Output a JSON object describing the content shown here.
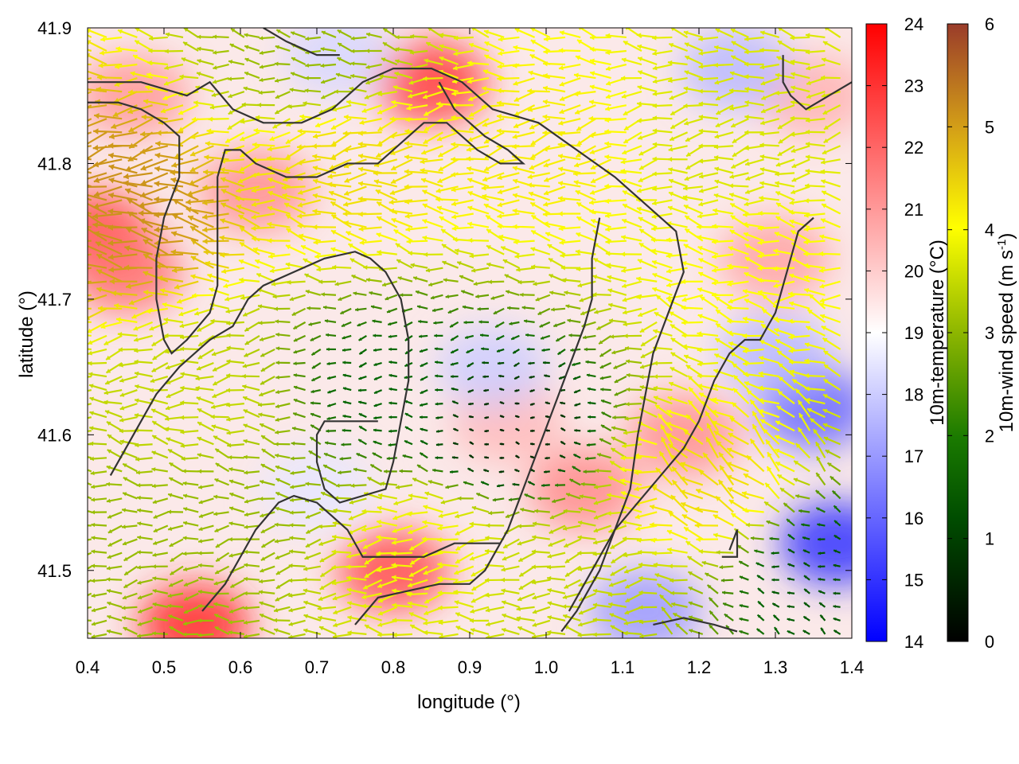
{
  "chart_data": {
    "type": "heatmap",
    "title": "",
    "xlabel": "longitude (°)",
    "ylabel": "latitude (°)",
    "xlim": [
      0.4,
      1.4
    ],
    "ylim": [
      41.45,
      41.9
    ],
    "xticks": [
      0.4,
      0.5,
      0.6,
      0.7,
      0.8,
      0.9,
      1.0,
      1.1,
      1.2,
      1.3,
      1.4
    ],
    "xtick_labels": [
      "0.4",
      "0.5",
      "0.6",
      "0.7",
      "0.8",
      "0.9",
      "1.0",
      "1.1",
      "1.2",
      "1.3",
      "1.4"
    ],
    "yticks": [
      41.5,
      41.6,
      41.7,
      41.8,
      41.9
    ],
    "ytick_labels": [
      "41.5",
      "41.6",
      "41.7",
      "41.8",
      "41.9"
    ],
    "grid": false,
    "temperature": {
      "label": "10m-temperature (°C)",
      "range": [
        14,
        24
      ],
      "ticks": [
        14,
        15,
        16,
        17,
        18,
        19,
        20,
        21,
        22,
        23,
        24
      ],
      "tick_labels": [
        "14",
        "15",
        "16",
        "17",
        "18",
        "19",
        "20",
        "21",
        "22",
        "23",
        "24"
      ],
      "colormap": [
        "#0000ff",
        "#ffffff",
        "#ff0000"
      ],
      "hot_spots": [
        {
          "lon": 0.41,
          "lat": 41.75,
          "value": 22.5
        },
        {
          "lon": 0.45,
          "lat": 41.72,
          "value": 21.8
        },
        {
          "lon": 0.46,
          "lat": 41.85,
          "value": 21.0
        },
        {
          "lon": 0.62,
          "lat": 41.78,
          "value": 21.2
        },
        {
          "lon": 0.85,
          "lat": 41.86,
          "value": 22.8
        },
        {
          "lon": 0.8,
          "lat": 41.5,
          "value": 22.5
        },
        {
          "lon": 0.54,
          "lat": 41.46,
          "value": 23.2
        },
        {
          "lon": 1.05,
          "lat": 41.56,
          "value": 21.3
        },
        {
          "lon": 1.18,
          "lat": 41.6,
          "value": 21.2
        },
        {
          "lon": 1.3,
          "lat": 41.73,
          "value": 20.8
        },
        {
          "lon": 1.35,
          "lat": 41.85,
          "value": 20.5
        },
        {
          "lon": 0.95,
          "lat": 41.61,
          "value": 20.4
        }
      ],
      "cool_spots": [
        {
          "lon": 1.38,
          "lat": 41.52,
          "value": 15.0
        },
        {
          "lon": 1.35,
          "lat": 41.62,
          "value": 16.0
        },
        {
          "lon": 1.13,
          "lat": 41.47,
          "value": 17.0
        },
        {
          "lon": 1.25,
          "lat": 41.87,
          "value": 17.6
        },
        {
          "lon": 1.3,
          "lat": 41.66,
          "value": 17.6
        },
        {
          "lon": 0.93,
          "lat": 41.65,
          "value": 18.0
        },
        {
          "lon": 0.7,
          "lat": 41.56,
          "value": 18.5
        },
        {
          "lon": 0.73,
          "lat": 41.88,
          "value": 18.2
        }
      ]
    },
    "wind": {
      "label": "10m-wind speed (m s",
      "label_superscript": "-1",
      "label_close": ")",
      "range": [
        0,
        6
      ],
      "ticks": [
        0,
        1,
        2,
        3,
        4,
        5,
        6
      ],
      "tick_labels": [
        "0",
        "1",
        "2",
        "3",
        "4",
        "5",
        "6"
      ],
      "colormap": [
        "#000000",
        "#006400",
        "#8db600",
        "#ffff00",
        "#d4a017",
        "#a0522d"
      ],
      "prevailing_direction": "easterly",
      "speed_regions": [
        {
          "lon": 0.45,
          "lat": 41.77,
          "value": 5.0
        },
        {
          "lon": 0.75,
          "lat": 41.8,
          "value": 4.0
        },
        {
          "lon": 1.0,
          "lat": 41.81,
          "value": 3.8
        },
        {
          "lon": 1.25,
          "lat": 41.82,
          "value": 3.2
        },
        {
          "lon": 1.28,
          "lat": 41.72,
          "value": 3.6
        },
        {
          "lon": 1.22,
          "lat": 41.56,
          "value": 4.0
        },
        {
          "lon": 0.95,
          "lat": 41.6,
          "value": 0.5
        },
        {
          "lon": 0.8,
          "lat": 41.63,
          "value": 1.2
        },
        {
          "lon": 0.6,
          "lat": 41.55,
          "value": 2.5
        },
        {
          "lon": 0.55,
          "lat": 41.62,
          "value": 3.0
        },
        {
          "lon": 0.85,
          "lat": 41.52,
          "value": 3.5
        },
        {
          "lon": 1.05,
          "lat": 41.5,
          "value": 3.0
        },
        {
          "lon": 0.48,
          "lat": 41.52,
          "value": 2.5
        },
        {
          "lon": 0.7,
          "lat": 41.88,
          "value": 2.5
        },
        {
          "lon": 1.36,
          "lat": 41.5,
          "value": 1.0
        }
      ]
    },
    "contours": [
      [
        [
          0.4,
          41.86
        ],
        [
          0.47,
          41.86
        ],
        [
          0.53,
          41.85
        ],
        [
          0.56,
          41.86
        ],
        [
          0.59,
          41.84
        ],
        [
          0.63,
          41.83
        ],
        [
          0.68,
          41.83
        ],
        [
          0.72,
          41.84
        ],
        [
          0.76,
          41.86
        ],
        [
          0.8,
          41.87
        ],
        [
          0.85,
          41.87
        ],
        [
          0.89,
          41.86
        ],
        [
          0.93,
          41.84
        ],
        [
          0.99,
          41.83
        ],
        [
          1.04,
          41.81
        ],
        [
          1.09,
          41.79
        ],
        [
          1.13,
          41.77
        ],
        [
          1.17,
          41.75
        ],
        [
          1.18,
          41.72
        ],
        [
          1.16,
          41.69
        ],
        [
          1.14,
          41.66
        ],
        [
          1.13,
          41.63
        ],
        [
          1.12,
          41.6
        ],
        [
          1.11,
          41.56
        ],
        [
          1.09,
          41.53
        ],
        [
          1.07,
          41.5
        ],
        [
          1.04,
          41.47
        ],
        [
          1.02,
          41.455
        ]
      ],
      [
        [
          0.4,
          41.845
        ],
        [
          0.44,
          41.845
        ],
        [
          0.47,
          41.84
        ],
        [
          0.5,
          41.83
        ],
        [
          0.52,
          41.82
        ],
        [
          0.52,
          41.79
        ],
        [
          0.5,
          41.76
        ],
        [
          0.49,
          41.73
        ],
        [
          0.49,
          41.7
        ],
        [
          0.5,
          41.67
        ],
        [
          0.51,
          41.66
        ],
        [
          0.53,
          41.67
        ],
        [
          0.56,
          41.69
        ],
        [
          0.57,
          41.71
        ],
        [
          0.57,
          41.75
        ],
        [
          0.57,
          41.79
        ],
        [
          0.58,
          41.81
        ],
        [
          0.6,
          41.81
        ],
        [
          0.62,
          41.8
        ],
        [
          0.66,
          41.79
        ],
        [
          0.7,
          41.79
        ],
        [
          0.74,
          41.8
        ],
        [
          0.78,
          41.8
        ],
        [
          0.82,
          41.82
        ],
        [
          0.84,
          41.83
        ],
        [
          0.87,
          41.83
        ],
        [
          0.91,
          41.81
        ],
        [
          0.94,
          41.8
        ],
        [
          0.97,
          41.8
        ],
        [
          0.95,
          41.81
        ],
        [
          0.92,
          41.82
        ],
        [
          0.88,
          41.84
        ],
        [
          0.86,
          41.86
        ]
      ],
      [
        [
          0.43,
          41.57
        ],
        [
          0.46,
          41.6
        ],
        [
          0.49,
          41.63
        ],
        [
          0.52,
          41.65
        ],
        [
          0.56,
          41.67
        ],
        [
          0.59,
          41.68
        ],
        [
          0.61,
          41.7
        ],
        [
          0.63,
          41.71
        ],
        [
          0.67,
          41.72
        ],
        [
          0.71,
          41.73
        ],
        [
          0.75,
          41.735
        ],
        [
          0.77,
          41.73
        ],
        [
          0.79,
          41.72
        ],
        [
          0.81,
          41.7
        ],
        [
          0.82,
          41.67
        ],
        [
          0.82,
          41.64
        ],
        [
          0.81,
          41.61
        ],
        [
          0.8,
          41.58
        ],
        [
          0.79,
          41.56
        ],
        [
          0.73,
          41.55
        ],
        [
          0.71,
          41.56
        ],
        [
          0.7,
          41.58
        ],
        [
          0.7,
          41.6
        ],
        [
          0.71,
          41.61
        ],
        [
          0.74,
          41.61
        ],
        [
          0.78,
          41.61
        ]
      ],
      [
        [
          0.55,
          41.47
        ],
        [
          0.58,
          41.49
        ],
        [
          0.6,
          41.51
        ],
        [
          0.62,
          41.53
        ],
        [
          0.65,
          41.55
        ],
        [
          0.67,
          41.555
        ],
        [
          0.7,
          41.55
        ],
        [
          0.72,
          41.54
        ],
        [
          0.74,
          41.53
        ],
        [
          0.76,
          41.51
        ],
        [
          0.8,
          41.51
        ],
        [
          0.84,
          41.51
        ],
        [
          0.88,
          41.52
        ],
        [
          0.92,
          41.52
        ],
        [
          0.94,
          41.52
        ]
      ],
      [
        [
          0.75,
          41.46
        ],
        [
          0.78,
          41.48
        ],
        [
          0.82,
          41.485
        ],
        [
          0.86,
          41.49
        ],
        [
          0.9,
          41.49
        ],
        [
          0.92,
          41.5
        ],
        [
          0.95,
          41.53
        ],
        [
          0.97,
          41.56
        ],
        [
          0.99,
          41.59
        ],
        [
          1.01,
          41.62
        ],
        [
          1.03,
          41.65
        ],
        [
          1.05,
          41.68
        ],
        [
          1.06,
          41.7
        ],
        [
          1.06,
          41.73
        ],
        [
          1.07,
          41.76
        ]
      ],
      [
        [
          1.03,
          41.47
        ],
        [
          1.06,
          41.5
        ],
        [
          1.09,
          41.53
        ],
        [
          1.12,
          41.55
        ],
        [
          1.15,
          41.57
        ],
        [
          1.18,
          41.59
        ],
        [
          1.2,
          41.61
        ],
        [
          1.22,
          41.64
        ],
        [
          1.24,
          41.66
        ],
        [
          1.26,
          41.67
        ],
        [
          1.28,
          41.67
        ],
        [
          1.3,
          41.69
        ],
        [
          1.31,
          41.71
        ],
        [
          1.32,
          41.73
        ],
        [
          1.33,
          41.75
        ],
        [
          1.35,
          41.76
        ]
      ],
      [
        [
          1.23,
          41.51
        ],
        [
          1.25,
          41.51
        ],
        [
          1.25,
          41.53
        ],
        [
          1.24,
          41.515
        ]
      ],
      [
        [
          1.14,
          41.46
        ],
        [
          1.18,
          41.465
        ],
        [
          1.22,
          41.46
        ],
        [
          1.25,
          41.455
        ]
      ],
      [
        [
          1.31,
          41.88
        ],
        [
          1.31,
          41.86
        ],
        [
          1.32,
          41.85
        ],
        [
          1.34,
          41.84
        ],
        [
          1.37,
          41.85
        ],
        [
          1.4,
          41.86
        ]
      ],
      [
        [
          0.63,
          41.9
        ],
        [
          0.66,
          41.89
        ],
        [
          0.7,
          41.88
        ],
        [
          0.73,
          41.88
        ]
      ]
    ]
  }
}
